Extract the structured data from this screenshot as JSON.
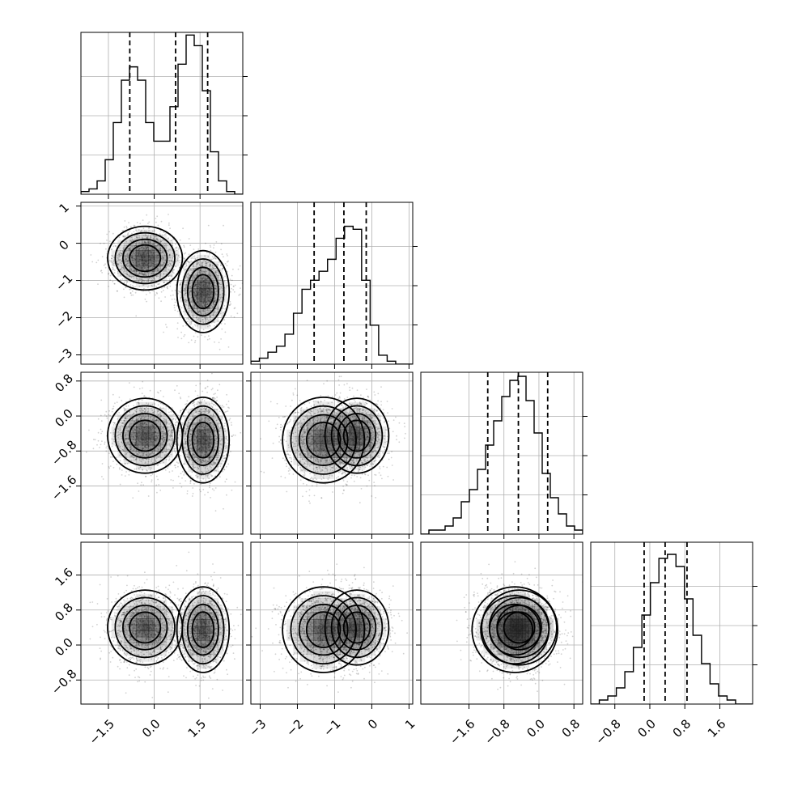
{
  "chart_data": {
    "type": "corner",
    "n_params": 4,
    "params": [
      {
        "range": [
          -2.4,
          2.9
        ],
        "ticks": [
          "−1.5",
          "0.0",
          "1.5"
        ],
        "tick_values": [
          -1.5,
          0.0,
          1.5
        ],
        "quantiles": [
          -0.8,
          0.7,
          1.75
        ],
        "hist_values": [
          1,
          2,
          5,
          13,
          27,
          43,
          48,
          43,
          27,
          20,
          20,
          33,
          49,
          60,
          56,
          39,
          16,
          5,
          1,
          0
        ],
        "hist_max": 61
      },
      {
        "range": [
          -3.25,
          1.1
        ],
        "ticks": [
          "−3",
          "−2",
          "−1",
          "0",
          "1"
        ],
        "tick_values": [
          -3,
          -2,
          -1,
          0,
          1
        ],
        "quantiles": [
          -1.55,
          -0.75,
          -0.15
        ],
        "hist_values": [
          1,
          2,
          4,
          6,
          10,
          17,
          25,
          28,
          31,
          35,
          42,
          46,
          45,
          28,
          13,
          3,
          1,
          0,
          0
        ],
        "hist_max": 54
      },
      {
        "range": [
          -2.7,
          1.0
        ],
        "ticks": [
          "−1.6",
          "−0.8",
          "0.0",
          "0.8"
        ],
        "tick_values": [
          -1.6,
          -0.8,
          0.0,
          0.8
        ],
        "quantiles": [
          -1.17,
          -0.47,
          0.2
        ],
        "hist_values": [
          0,
          1,
          1,
          2,
          4,
          8,
          11,
          16,
          22,
          28,
          34,
          38,
          39,
          33,
          25,
          15,
          9,
          5,
          2,
          1
        ],
        "hist_max": 40
      },
      {
        "range": [
          -1.35,
          2.35
        ],
        "ticks": [
          "−0.8",
          "0.0",
          "0.8",
          "1.6"
        ],
        "tick_values": [
          -0.8,
          0.0,
          0.8,
          1.6
        ],
        "quantiles": [
          -0.13,
          0.35,
          0.85
        ],
        "hist_values": [
          0,
          1,
          2,
          4,
          8,
          14,
          22,
          30,
          36,
          37,
          34,
          26,
          17,
          10,
          5,
          2,
          1,
          0,
          0
        ],
        "hist_max": 40
      }
    ],
    "modes": [
      {
        "center": [
          -0.3,
          -0.4,
          -0.45,
          0.4
        ],
        "sd": [
          0.5,
          0.35,
          0.35,
          0.35
        ],
        "weight": 0.5
      },
      {
        "center": [
          1.6,
          -1.3,
          -0.55,
          0.35
        ],
        "sd": [
          0.35,
          0.45,
          0.4,
          0.4
        ],
        "weight": 0.5
      }
    ],
    "contour_levels": [
      0.4,
      0.65,
      0.85,
      0.95
    ],
    "samples_per_panel": 2600,
    "grid": true,
    "colors": {
      "line": "#000000",
      "grid": "#b0b0b0",
      "points": "#000000",
      "density_dark": "#1a1a1a"
    },
    "title": "",
    "xlabel": "",
    "ylabel": ""
  }
}
